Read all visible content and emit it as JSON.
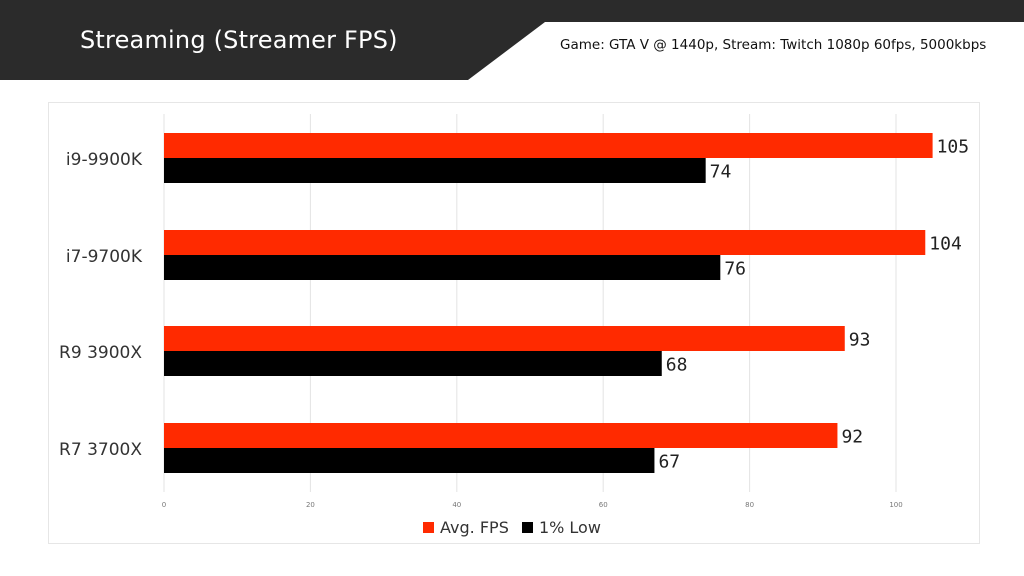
{
  "header": {
    "title": "Streaming (Streamer FPS)",
    "subtitle": "Game: GTA V @ 1440p, Stream: Twitch 1080p 60fps, 5000kbps"
  },
  "colors": {
    "avg": "#ff2a00",
    "low": "#000000",
    "header_bg": "#2b2b2b",
    "grid": "#e3e3e3"
  },
  "chart_data": {
    "type": "bar",
    "orientation": "horizontal",
    "title": "Streaming (Streamer FPS)",
    "subtitle": "Game: GTA V @ 1440p, Stream: Twitch 1080p 60fps, 5000kbps",
    "categories": [
      "i9-9900K",
      "i7-9700K",
      "R9 3900X",
      "R7 3700X"
    ],
    "series": [
      {
        "name": "Avg. FPS",
        "color": "#ff2a00",
        "values": [
          105,
          104,
          93,
          92
        ]
      },
      {
        "name": "1% Low",
        "color": "#000000",
        "values": [
          74,
          76,
          68,
          67
        ]
      }
    ],
    "xlim": [
      0,
      110
    ],
    "xticks": [
      "0",
      "20",
      "40",
      "60",
      "80",
      "100"
    ],
    "grid": true,
    "legend": "bottom"
  }
}
